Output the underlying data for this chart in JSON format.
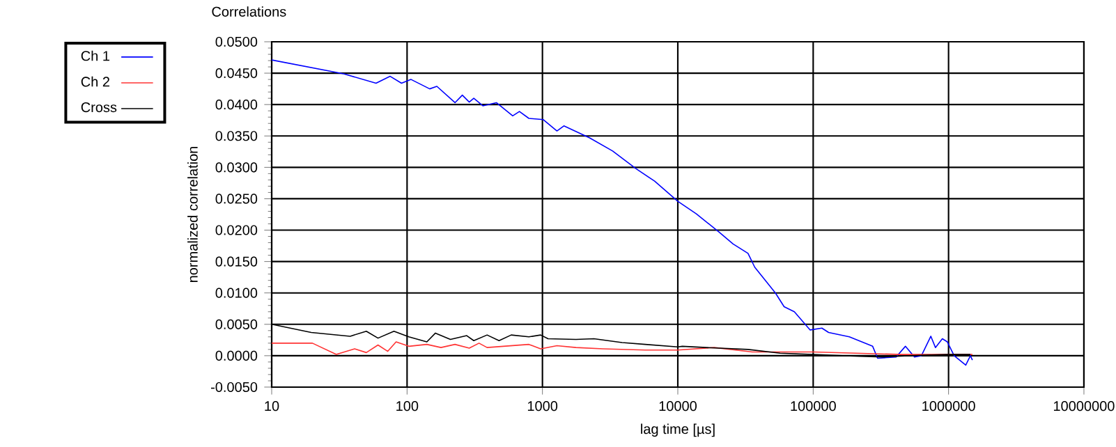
{
  "chart_data": {
    "type": "line",
    "title": "Correlations",
    "xlabel": "lag time [µs]",
    "ylabel": "normalized correlation",
    "log": "x",
    "grid": true,
    "legend": "left",
    "marker": "none",
    "line_style": "solid",
    "xlim": [
      10,
      10000000
    ],
    "ylim": [
      -0.005,
      0.05
    ],
    "xticks": [
      10,
      100,
      1000,
      10000,
      100000,
      1000000,
      10000000
    ],
    "yticks": [
      {
        "value": -0.005,
        "label": "-0.0050"
      },
      {
        "value": 0,
        "label": "0.0000"
      },
      {
        "value": 0.005,
        "label": "0.0050"
      },
      {
        "value": 0.01,
        "label": "0.0100"
      },
      {
        "value": 0.015,
        "label": "0.0150"
      },
      {
        "value": 0.02,
        "label": "0.0200"
      },
      {
        "value": 0.025,
        "label": "0.0250"
      },
      {
        "value": 0.03,
        "label": "0.0300"
      },
      {
        "value": 0.035,
        "label": "0.0350"
      },
      {
        "value": 0.04,
        "label": "0.0400"
      },
      {
        "value": 0.045,
        "label": "0.0450"
      },
      {
        "value": 0.05,
        "label": "0.0500"
      }
    ],
    "series": [
      {
        "name": "Ch 1",
        "color": "#0000ff",
        "x": [
          10,
          34,
          59,
          75,
          91,
          107,
          147,
          166,
          226,
          256,
          288,
          311,
          363,
          457,
          603,
          676,
          794,
          1015,
          1280,
          1440,
          2230,
          3300,
          4900,
          6740,
          10000,
          13700,
          20400,
          25600,
          33000,
          37000,
          52600,
          61000,
          72600,
          95000,
          116000,
          130000,
          185000,
          275000,
          299000,
          410000,
          480000,
          560000,
          630000,
          740000,
          800000,
          900000,
          980000,
          1100000,
          1340000,
          1450000,
          1500000
        ],
        "values": [
          0.0471,
          0.0449,
          0.0434,
          0.0445,
          0.0434,
          0.044,
          0.0425,
          0.0429,
          0.0403,
          0.0415,
          0.0404,
          0.041,
          0.0398,
          0.0403,
          0.0382,
          0.0389,
          0.0378,
          0.0376,
          0.0358,
          0.0366,
          0.0347,
          0.0326,
          0.0298,
          0.0278,
          0.0246,
          0.0226,
          0.0196,
          0.0178,
          0.0163,
          0.0141,
          0.01,
          0.0078,
          0.007,
          0.0041,
          0.0044,
          0.0037,
          0.003,
          0.0015,
          -0.0004,
          -0.0002,
          0.0015,
          -0.0002,
          0.0,
          0.0031,
          0.0013,
          0.0027,
          0.0022,
          0.0,
          -0.0015,
          0.0,
          -0.0007
        ]
      },
      {
        "name": "Ch 2",
        "color": "#ff3333",
        "x": [
          10,
          20,
          30,
          41,
          50,
          61,
          72,
          83,
          103,
          140,
          178,
          226,
          288,
          340,
          390,
          794,
          970,
          1280,
          1770,
          2800,
          5750,
          10000,
          18600,
          35500,
          100000,
          450000,
          1500000
        ],
        "values": [
          0.002,
          0.002,
          0.0002,
          0.0011,
          0.0005,
          0.0017,
          0.0007,
          0.0022,
          0.0015,
          0.0018,
          0.0013,
          0.0018,
          0.0012,
          0.002,
          0.0013,
          0.0018,
          0.0011,
          0.0016,
          0.0013,
          0.0011,
          0.0009,
          0.0009,
          0.0013,
          0.0006,
          0.0006,
          0.0002,
          0.0002
        ]
      },
      {
        "name": "Cross",
        "color": "#000000",
        "x": [
          10,
          19.6,
          38,
          50,
          61,
          80,
          103,
          140,
          162,
          209,
          276,
          311,
          390,
          478,
          588,
          794,
          970,
          1100,
          1770,
          2400,
          3880,
          5750,
          10000,
          10800,
          16200,
          33000,
          57000,
          99000,
          220000,
          324000,
          510000,
          980000,
          1450000
        ],
        "values": [
          0.005,
          0.0037,
          0.0031,
          0.0039,
          0.0028,
          0.0039,
          0.003,
          0.0022,
          0.0036,
          0.0026,
          0.0032,
          0.0024,
          0.0033,
          0.0024,
          0.0033,
          0.003,
          0.0033,
          0.0027,
          0.0026,
          0.0027,
          0.0021,
          0.0018,
          0.0014,
          0.0015,
          0.0013,
          0.001,
          0.0004,
          0.0002,
          -0.0001,
          -0.0002,
          0.0,
          0.0002,
          0.0002
        ]
      }
    ]
  }
}
